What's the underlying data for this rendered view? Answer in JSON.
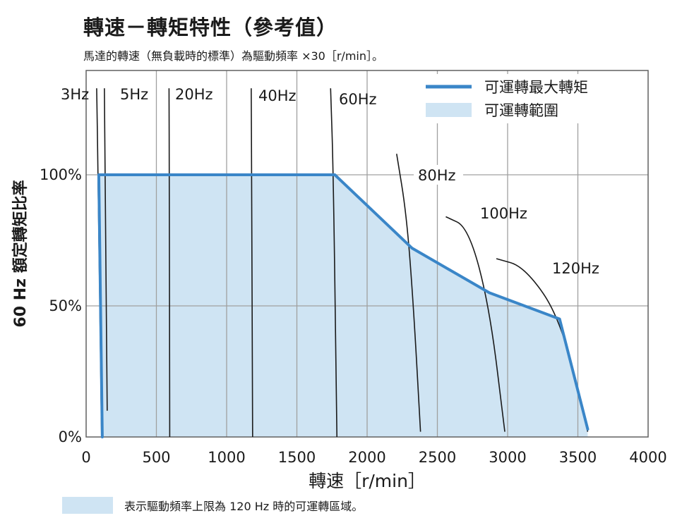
{
  "header": {
    "title": "轉速－轉矩特性（參考值）",
    "subtitle": "馬達的轉速（無負載時的標準）為驅動頻率 ×30［r/min］。"
  },
  "footnote": "表示驅動頻率上限為 120 Hz 時的可運轉區域。",
  "colors": {
    "max_torque_line": "#3a86c8",
    "operable_area": "#cfe4f3",
    "grid": "#a0a0a0",
    "curves": "#1a1a1a"
  },
  "chart_data": {
    "type": "area",
    "title": "轉速－轉矩特性（參考值）",
    "xlabel": "轉速［r/min］",
    "ylabel": "60 Hz 額定轉矩比率",
    "xlim": [
      0,
      4000
    ],
    "ylim": [
      0,
      100
    ],
    "xticks": [
      0,
      500,
      1000,
      1500,
      2000,
      2500,
      3000,
      3500,
      4000
    ],
    "yticks": [
      {
        "value": 0,
        "label": "0%"
      },
      {
        "value": 50,
        "label": "50%"
      },
      {
        "value": 100,
        "label": "100%"
      }
    ],
    "x_gridlines": [
      500,
      1000,
      1500,
      2000,
      2500,
      3000,
      3500
    ],
    "y_gridlines": [
      50,
      100
    ],
    "grid": true,
    "legend_position": "top-right",
    "legend": [
      {
        "label": "可運轉最大轉矩",
        "kind": "line"
      },
      {
        "label": "可運轉範圍",
        "kind": "area"
      }
    ],
    "series": [
      {
        "name": "可運轉最大轉矩",
        "points": [
          [
            115,
            0
          ],
          [
            90,
            100
          ],
          [
            1770,
            100
          ],
          [
            2320,
            72
          ],
          [
            2870,
            55
          ],
          [
            3370,
            45
          ],
          [
            3570,
            3
          ]
        ]
      }
    ],
    "frequency_curves": [
      {
        "label": "3Hz",
        "points": [
          [
            75,
            133
          ],
          [
            85,
            100
          ],
          [
            110,
            0
          ]
        ]
      },
      {
        "label": "5Hz",
        "points": [
          [
            130,
            133
          ],
          [
            135,
            100
          ],
          [
            150,
            10
          ]
        ]
      },
      {
        "label": "20Hz",
        "points": [
          [
            590,
            133
          ],
          [
            592,
            100
          ],
          [
            595,
            0
          ]
        ]
      },
      {
        "label": "40Hz",
        "points": [
          [
            1175,
            133
          ],
          [
            1178,
            100
          ],
          [
            1185,
            0
          ]
        ]
      },
      {
        "label": "60Hz",
        "points": [
          [
            1740,
            133
          ],
          [
            1760,
            100
          ],
          [
            1785,
            0
          ]
        ]
      },
      {
        "label": "80Hz",
        "points": [
          [
            2210,
            108
          ],
          [
            2280,
            85
          ],
          [
            2330,
            50
          ],
          [
            2380,
            2
          ]
        ]
      },
      {
        "label": "100Hz",
        "points": [
          [
            2560,
            84
          ],
          [
            2720,
            80
          ],
          [
            2870,
            50
          ],
          [
            2980,
            2
          ]
        ]
      },
      {
        "label": "120Hz",
        "points": [
          [
            2920,
            68
          ],
          [
            3120,
            65
          ],
          [
            3380,
            45
          ],
          [
            3570,
            2
          ]
        ]
      }
    ]
  }
}
